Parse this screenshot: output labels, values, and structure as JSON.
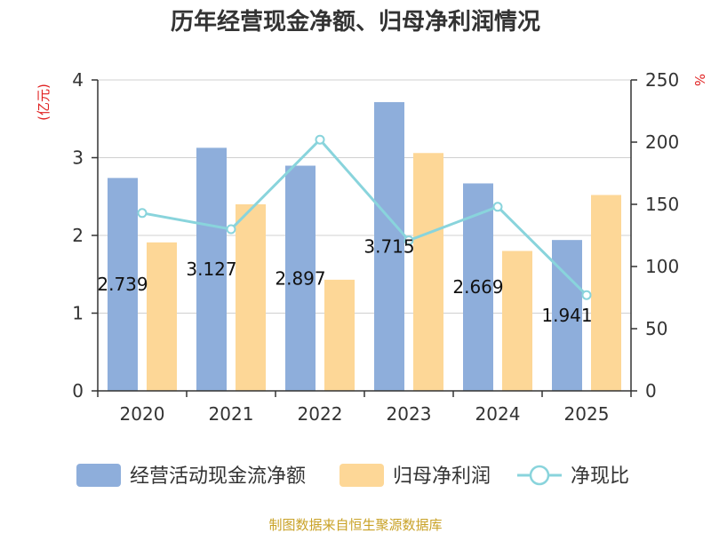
{
  "chart_data": {
    "type": "bar",
    "title": "历年经营现金净额、归母净利润情况",
    "categories": [
      "2020",
      "2021",
      "2022",
      "2023",
      "2024",
      "2025"
    ],
    "y_left": {
      "unit": "(亿元)",
      "range": [
        0,
        4
      ],
      "ticks": [
        0,
        1,
        2,
        3,
        4
      ]
    },
    "y_right": {
      "unit": "%",
      "range": [
        0,
        250
      ],
      "ticks": [
        0,
        50,
        100,
        150,
        200,
        250
      ]
    },
    "series": [
      {
        "name": "经营活动现金流净额",
        "type": "bar",
        "axis": "left",
        "color": "#8eaedb",
        "values": [
          2.739,
          3.127,
          2.897,
          3.715,
          2.669,
          1.941
        ],
        "labels": [
          "2.739",
          "3.127",
          "2.897",
          "3.715",
          "2.669",
          "1.941"
        ]
      },
      {
        "name": "归母净利润",
        "type": "bar",
        "axis": "left",
        "color": "#fdd797",
        "values": [
          1.91,
          2.4,
          1.43,
          3.06,
          1.8,
          2.52
        ]
      },
      {
        "name": "净现比",
        "type": "line",
        "axis": "right",
        "color": "#89d4dc",
        "values": [
          143,
          130,
          202,
          121,
          148,
          77
        ]
      }
    ],
    "grid": true,
    "legend_position": "bottom"
  },
  "source": {
    "text": "制图数据来自恒生聚源数据库",
    "color": "#c9a227"
  },
  "colors": {
    "unit": "#e02020",
    "axis": "#333333",
    "grid": "#d0d0d0"
  }
}
